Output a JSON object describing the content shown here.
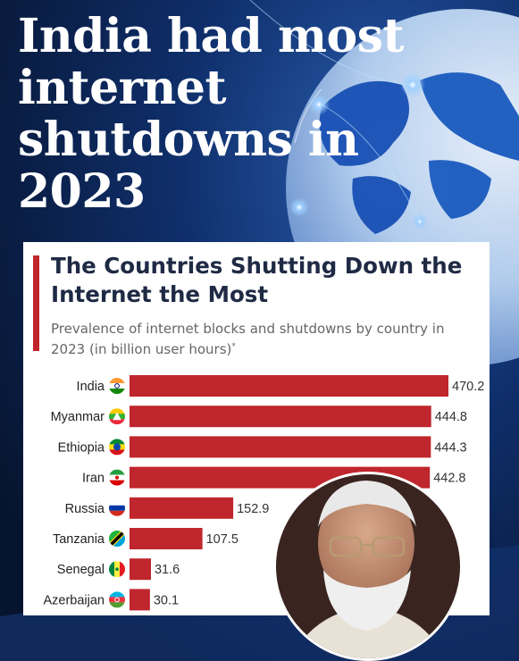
{
  "headline": "India had most internet shutdowns in 2023",
  "chart_data": {
    "type": "bar",
    "orientation": "horizontal",
    "title": "The Countries Shutting Down the Internet the Most",
    "subtitle": "Prevalence of internet blocks and shutdowns by country in 2023 (in billion user hours)",
    "subtitle_mark": "*",
    "categories": [
      "India",
      "Myanmar",
      "Ethiopia",
      "Iran",
      "Russia",
      "Tanzania",
      "Senegal",
      "Azerbaijan"
    ],
    "values": [
      470.2,
      444.8,
      444.3,
      442.8,
      152.9,
      107.5,
      31.6,
      30.1
    ],
    "value_labels": [
      "470.2",
      "444.8",
      "444.3",
      "442.8",
      "152.9",
      "107.5",
      "31.6",
      "30.1"
    ],
    "bar_color": "#c0262d",
    "xlim": [
      0,
      470.2
    ],
    "grid": false,
    "flags": [
      "india-flag-icon",
      "myanmar-flag-icon",
      "ethiopia-flag-icon",
      "iran-flag-icon",
      "russia-flag-icon",
      "tanzania-flag-icon",
      "senegal-flag-icon",
      "azerbaijan-flag-icon"
    ]
  }
}
